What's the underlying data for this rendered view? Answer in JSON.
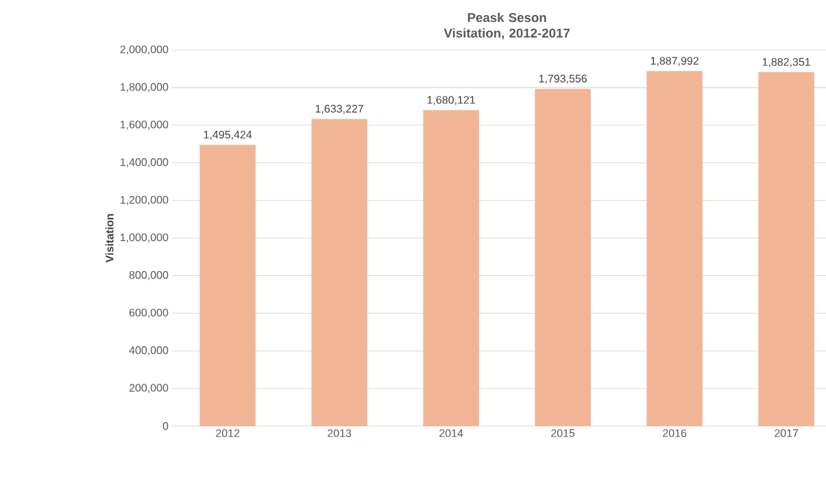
{
  "chart_data": {
    "type": "bar",
    "title": "Peask Seson Visitation, 2012-2017",
    "ylabel": "Visitation",
    "categories": [
      "2012",
      "2013",
      "2014",
      "2015",
      "2016",
      "2017"
    ],
    "values": [
      1495424,
      1633227,
      1680121,
      1793556,
      1887992,
      1882351
    ],
    "color": "#f1b596",
    "value_labels": [
      "1,495,424",
      "1,633,227",
      "1,680,121",
      "1,793,556",
      "1,887,992",
      "1,882,351"
    ],
    "grid": "y",
    "ylim": [
      0,
      2000000
    ],
    "yticks": [
      {
        "value": 0,
        "label": "0"
      },
      {
        "value": 200000,
        "label": "200,000"
      },
      {
        "value": 400000,
        "label": "400,000"
      },
      {
        "value": 600000,
        "label": "600,000"
      },
      {
        "value": 800000,
        "label": "800,000"
      },
      {
        "value": 1000000,
        "label": "1,000,000"
      },
      {
        "value": 1200000,
        "label": "1,200,000"
      },
      {
        "value": 1400000,
        "label": "1,400,000"
      },
      {
        "value": 1600000,
        "label": "1,600,000"
      },
      {
        "value": 1800000,
        "label": "1,800,000"
      },
      {
        "value": 2000000,
        "label": "2,000,000"
      }
    ]
  }
}
